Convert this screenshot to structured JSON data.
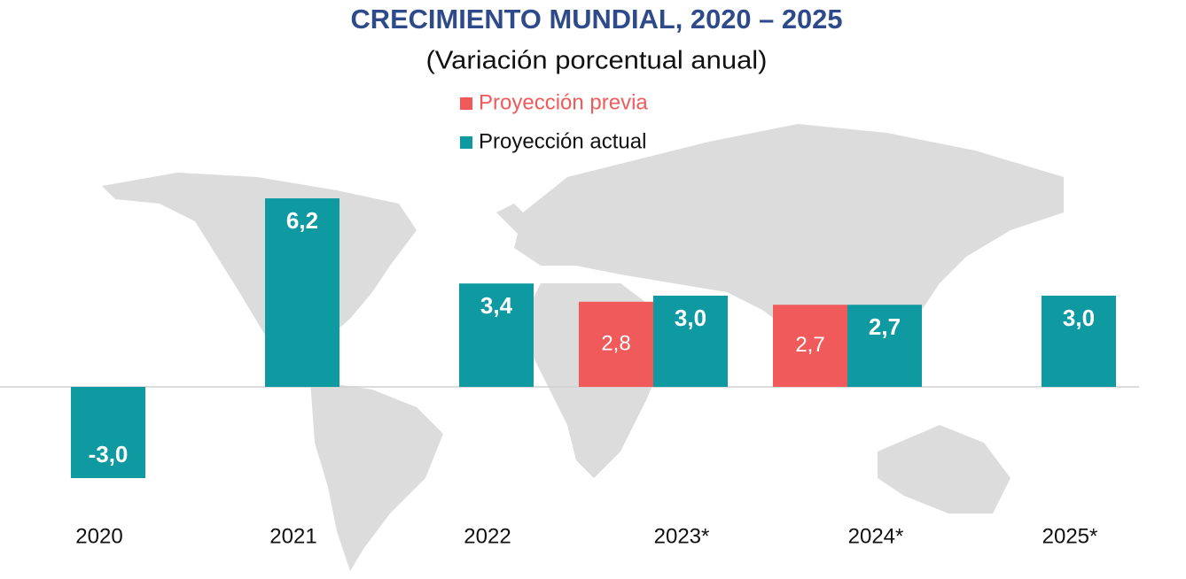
{
  "chart_data": {
    "type": "bar",
    "title": "CRECIMIENTO MUNDIAL, 2020 – 2025",
    "subtitle": "(Variación porcentual anual)",
    "categories": [
      "2020",
      "2021",
      "2022",
      "2023*",
      "2024*",
      "2025*"
    ],
    "series": [
      {
        "name": "Proyección previa",
        "color": "#f05a5a",
        "values": [
          null,
          null,
          null,
          2.8,
          2.7,
          null
        ],
        "value_labels": [
          null,
          null,
          null,
          "2,8",
          "2,7",
          null
        ]
      },
      {
        "name": "Proyección actual",
        "color": "#0e9aa0",
        "values": [
          -3.0,
          6.2,
          3.4,
          3.0,
          2.7,
          3.0
        ],
        "value_labels": [
          "-3,0",
          "6,2",
          "3,4",
          "3,0",
          "2,7",
          "3,0"
        ]
      }
    ],
    "ylim": [
      -4,
      7
    ]
  }
}
